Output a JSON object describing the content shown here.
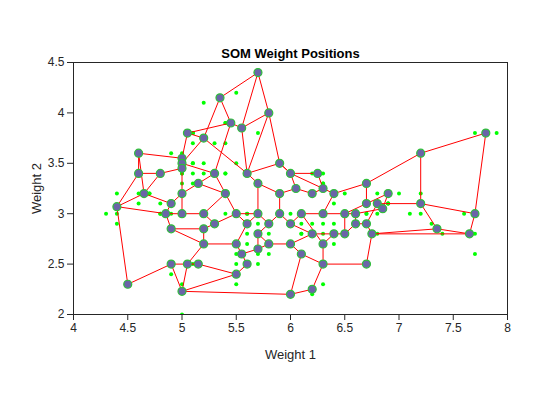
{
  "chart_data": {
    "type": "scatter",
    "title": "SOM Weight Positions",
    "xlabel": "Weight 1",
    "ylabel": "Weight 2",
    "xlim": [
      4,
      8
    ],
    "ylim": [
      2,
      4.5
    ],
    "xticks": [
      4,
      4.5,
      5,
      5.5,
      6,
      6.5,
      7,
      7.5,
      8
    ],
    "yticks": [
      2,
      2.5,
      3,
      3.5,
      4,
      4.5
    ],
    "grid": false,
    "series": [
      {
        "type": "scatter",
        "color": "#00ff00",
        "marker": "dot",
        "x": [
          5.1,
          4.9,
          4.7,
          4.6,
          5.0,
          5.4,
          4.6,
          5.0,
          4.4,
          4.9,
          5.4,
          4.8,
          4.8,
          4.3,
          5.8,
          5.7,
          5.4,
          5.1,
          5.7,
          5.1,
          5.4,
          5.1,
          4.6,
          5.1,
          4.8,
          5.0,
          5.0,
          5.2,
          5.2,
          4.7,
          4.8,
          5.4,
          5.2,
          5.5,
          4.9,
          5.0,
          5.5,
          4.9,
          4.4,
          5.1,
          5.0,
          4.5,
          4.4,
          5.0,
          5.1,
          4.8,
          5.1,
          4.6,
          5.3,
          5.0,
          7.0,
          6.4,
          6.9,
          5.5,
          6.5,
          5.7,
          6.3,
          4.9,
          6.6,
          5.2,
          5.0,
          5.9,
          6.0,
          6.1,
          5.6,
          6.7,
          5.6,
          5.8,
          6.2,
          5.6,
          5.9,
          6.1,
          6.3,
          6.1,
          6.4,
          6.6,
          6.8,
          6.7,
          6.0,
          5.7,
          5.5,
          5.5,
          5.8,
          6.0,
          5.4,
          6.0,
          6.7,
          6.3,
          5.6,
          5.5,
          5.5,
          6.1,
          5.8,
          5.0,
          5.6,
          5.7,
          5.7,
          6.2,
          5.1,
          5.7,
          6.3,
          5.8,
          7.1,
          6.3,
          6.5,
          7.6,
          4.9,
          7.3,
          6.7,
          7.2,
          6.5,
          6.4,
          6.8,
          5.7,
          5.8,
          6.4,
          6.5,
          7.7,
          7.7,
          6.0,
          6.9,
          5.6,
          7.7,
          6.3,
          6.7,
          7.2,
          6.2,
          6.1,
          6.4,
          7.2,
          7.4,
          7.9,
          6.4,
          6.3,
          6.1,
          7.7,
          6.3,
          6.4,
          6.0,
          6.9,
          6.7,
          6.9,
          5.8,
          6.8,
          6.7,
          6.7,
          6.3,
          6.5,
          6.2,
          5.9
        ],
        "y": [
          3.5,
          3.0,
          3.2,
          3.1,
          3.6,
          3.9,
          3.4,
          3.4,
          2.9,
          3.1,
          3.7,
          3.4,
          3.0,
          3.0,
          4.0,
          4.4,
          3.9,
          3.5,
          3.8,
          3.8,
          3.4,
          3.7,
          3.6,
          3.3,
          3.4,
          3.0,
          3.4,
          3.5,
          3.4,
          3.2,
          3.1,
          3.4,
          4.1,
          4.2,
          3.1,
          3.2,
          3.5,
          3.6,
          3.0,
          3.4,
          3.5,
          2.3,
          3.2,
          3.5,
          3.8,
          3.0,
          3.8,
          3.2,
          3.7,
          3.3,
          3.2,
          3.2,
          3.1,
          2.3,
          2.8,
          2.8,
          3.3,
          2.4,
          2.9,
          2.7,
          2.0,
          3.0,
          2.2,
          2.9,
          2.9,
          3.1,
          3.0,
          2.7,
          2.2,
          2.5,
          3.2,
          2.8,
          2.5,
          2.8,
          2.9,
          3.0,
          2.8,
          3.0,
          2.9,
          2.6,
          2.4,
          2.4,
          2.7,
          2.7,
          3.0,
          3.4,
          3.1,
          2.3,
          3.0,
          2.5,
          2.6,
          3.0,
          2.6,
          2.3,
          2.7,
          3.0,
          2.9,
          2.9,
          2.5,
          2.8,
          3.3,
          2.7,
          3.0,
          2.9,
          3.0,
          3.0,
          2.5,
          2.9,
          2.5,
          3.6,
          3.2,
          2.7,
          3.0,
          2.5,
          2.8,
          3.2,
          3.0,
          3.8,
          2.6,
          2.2,
          3.2,
          2.8,
          2.8,
          2.7,
          3.3,
          3.2,
          2.8,
          3.0,
          2.8,
          3.0,
          2.8,
          3.8,
          2.8,
          2.8,
          2.6,
          3.0,
          3.4,
          3.1,
          3.0,
          3.1,
          3.1,
          3.1,
          2.7,
          3.2,
          3.3,
          3.0,
          2.5,
          3.0,
          3.4,
          3.0
        ]
      },
      {
        "type": "line",
        "color": "#ff0000",
        "edges": [
          [
            0,
            1
          ],
          [
            0,
            2
          ],
          [
            0,
            4
          ],
          [
            1,
            4
          ],
          [
            1,
            13
          ],
          [
            2,
            3
          ],
          [
            2,
            6
          ],
          [
            3,
            4
          ],
          [
            3,
            11
          ],
          [
            4,
            12
          ],
          [
            5,
            6
          ],
          [
            5,
            8
          ],
          [
            6,
            9
          ],
          [
            6,
            12
          ],
          [
            7,
            8
          ],
          [
            7,
            14
          ],
          [
            7,
            16
          ],
          [
            8,
            10
          ],
          [
            9,
            11
          ],
          [
            10,
            15
          ],
          [
            10,
            23
          ],
          [
            11,
            22
          ],
          [
            12,
            13
          ],
          [
            12,
            75
          ],
          [
            13,
            24
          ],
          [
            14,
            15
          ],
          [
            14,
            17
          ],
          [
            15,
            16
          ],
          [
            16,
            18
          ],
          [
            17,
            19
          ],
          [
            17,
            61
          ],
          [
            18,
            19
          ],
          [
            18,
            23
          ],
          [
            19,
            59
          ],
          [
            20,
            22
          ],
          [
            20,
            81
          ],
          [
            20,
            80
          ],
          [
            21,
            22
          ],
          [
            21,
            47
          ],
          [
            21,
            46
          ],
          [
            22,
            82
          ],
          [
            23,
            82
          ],
          [
            24,
            26
          ],
          [
            24,
            76
          ],
          [
            25,
            27
          ],
          [
            25,
            76
          ],
          [
            26,
            27
          ],
          [
            27,
            28
          ],
          [
            28,
            29
          ],
          [
            28,
            42
          ],
          [
            29,
            33
          ],
          [
            29,
            30
          ],
          [
            30,
            31
          ],
          [
            31,
            39
          ],
          [
            32,
            35
          ],
          [
            32,
            39
          ],
          [
            33,
            34
          ],
          [
            33,
            35
          ],
          [
            34,
            36
          ],
          [
            35,
            36
          ],
          [
            35,
            37
          ],
          [
            36,
            38
          ],
          [
            37,
            38
          ],
          [
            37,
            72
          ],
          [
            38,
            72
          ],
          [
            39,
            40
          ],
          [
            40,
            41
          ],
          [
            41,
            42
          ],
          [
            42,
            43
          ],
          [
            43,
            44
          ],
          [
            44,
            48
          ],
          [
            45,
            46
          ],
          [
            45,
            48
          ],
          [
            46,
            47
          ],
          [
            47,
            49
          ],
          [
            48,
            74
          ],
          [
            74,
            75
          ],
          [
            74,
            76
          ],
          [
            49,
            50
          ],
          [
            50,
            51
          ],
          [
            51,
            52
          ],
          [
            50,
            53
          ],
          [
            53,
            54
          ],
          [
            54,
            57
          ],
          [
            55,
            56
          ],
          [
            56,
            57
          ],
          [
            57,
            58
          ],
          [
            58,
            61
          ],
          [
            58,
            60
          ],
          [
            59,
            55
          ],
          [
            60,
            62
          ],
          [
            60,
            54
          ],
          [
            62,
            63
          ],
          [
            63,
            67
          ],
          [
            62,
            66
          ],
          [
            64,
            65
          ],
          [
            65,
            66
          ],
          [
            66,
            67
          ],
          [
            67,
            68
          ],
          [
            68,
            69
          ],
          [
            69,
            71
          ],
          [
            70,
            72
          ],
          [
            70,
            67
          ],
          [
            71,
            73
          ],
          [
            72,
            77
          ],
          [
            73,
            77
          ],
          [
            73,
            40
          ],
          [
            77,
            32
          ],
          [
            64,
            44
          ],
          [
            65,
            52
          ],
          [
            52,
            78
          ],
          [
            78,
            45
          ],
          [
            78,
            51
          ],
          [
            79,
            80
          ],
          [
            79,
            59
          ],
          [
            80,
            21
          ],
          [
            81,
            19
          ],
          [
            82,
            11
          ],
          [
            75,
            46
          ],
          [
            24,
            13
          ],
          [
            41,
            71
          ],
          [
            64,
            69
          ],
          [
            68,
            43
          ],
          [
            55,
            49
          ],
          [
            56,
            60
          ],
          [
            79,
            55
          ],
          [
            23,
            81
          ],
          [
            9,
            10
          ],
          [
            5,
            3
          ],
          [
            30,
            41
          ],
          [
            27,
            24
          ],
          [
            1,
            12
          ],
          [
            16,
            17
          ]
        ]
      },
      {
        "type": "scatter",
        "color": "#6b64a8",
        "marker": "circle",
        "x": [
          5.7,
          5.8,
          5.35,
          5.45,
          5.55,
          5.05,
          5.2,
          4.6,
          5.0,
          5.0,
          5.0,
          5.3,
          5.6,
          5.9,
          4.6,
          4.8,
          4.65,
          4.4,
          4.9,
          4.85,
          5.2,
          5.5,
          5.4,
          5.0,
          6.0,
          6.2,
          6.25,
          6.3,
          6.4,
          6.7,
          6.7,
          6.9,
          6.8,
          7.2,
          7.8,
          7.2,
          7.7,
          7.35,
          7.65,
          6.85,
          6.6,
          6.5,
          6.3,
          6.1,
          6.0,
          5.8,
          5.7,
          5.6,
          5.9,
          5.5,
          5.55,
          5.7,
          5.8,
          5.6,
          5.5,
          5.2,
          5.05,
          5.15,
          4.9,
          4.9,
          5.0,
          4.5,
          6.0,
          6.2,
          6.2,
          6.0,
          6.1,
          6.3,
          6.3,
          6.4,
          6.7,
          6.5,
          6.75,
          6.6,
          5.9,
          5.7,
          6.05,
          6.7,
          5.7,
          5.2,
          5.3,
          5.0,
          5.15
        ],
        "y": [
          4.4,
          4.0,
          4.15,
          3.9,
          3.85,
          3.8,
          3.75,
          3.6,
          3.55,
          3.5,
          3.45,
          3.4,
          3.4,
          3.5,
          3.4,
          3.4,
          3.2,
          3.07,
          3.1,
          3.0,
          3.0,
          3.0,
          3.2,
          3.2,
          3.4,
          3.2,
          3.4,
          3.25,
          3.2,
          3.3,
          3.1,
          3.2,
          3.1,
          3.6,
          3.8,
          3.1,
          3.0,
          2.85,
          2.8,
          3.05,
          3.0,
          3.0,
          3.0,
          3.0,
          2.9,
          2.9,
          3.0,
          2.9,
          3.0,
          2.7,
          2.6,
          2.65,
          2.7,
          2.5,
          2.4,
          2.7,
          2.5,
          2.5,
          2.5,
          2.85,
          2.23,
          2.3,
          2.2,
          2.25,
          2.8,
          2.7,
          2.6,
          2.5,
          2.7,
          2.8,
          2.5,
          2.8,
          2.8,
          2.9,
          3.2,
          3.3,
          3.25,
          2.9,
          2.8,
          2.85,
          2.9,
          3.0,
          3.3
        ]
      }
    ]
  }
}
